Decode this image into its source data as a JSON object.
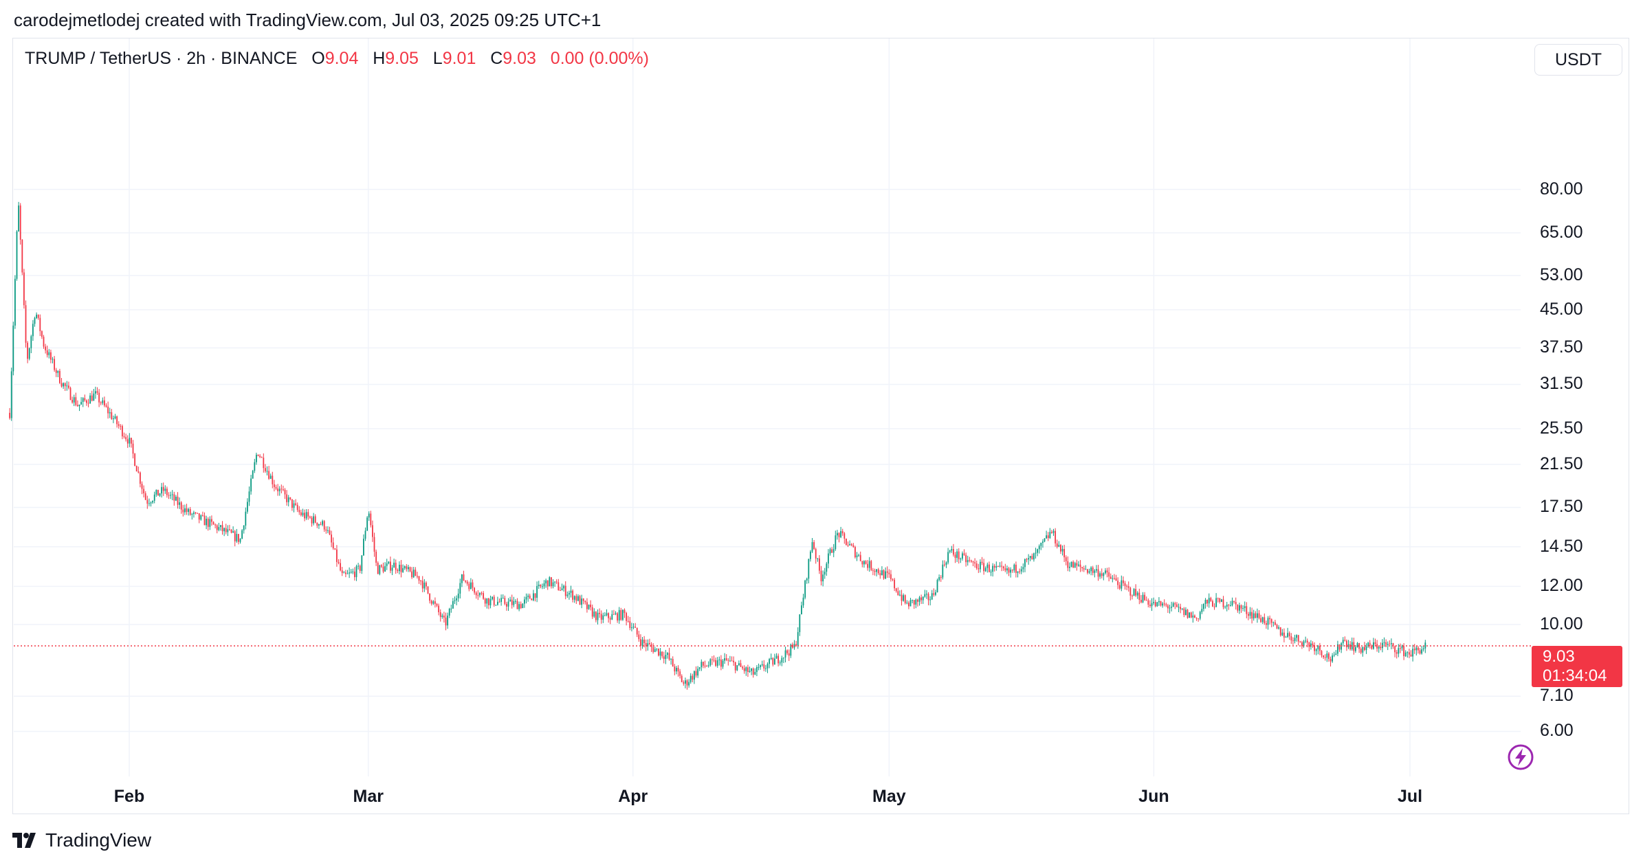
{
  "attribution": "carodejmetlodej created with TradingView.com, Jul 03, 2025 09:25 UTC+1",
  "legend": {
    "symbol": "TRUMP / TetherUS · 2h · BINANCE",
    "o_label": "O",
    "o_value": "9.04",
    "h_label": "H",
    "h_value": "9.05",
    "l_label": "L",
    "l_value": "9.01",
    "c_label": "C",
    "c_value": "9.03",
    "change": "0.00 (0.00%)"
  },
  "currency": "USDT",
  "price_badge": {
    "price": "9.03",
    "countdown": "01:34:04"
  },
  "brand": "TradingView",
  "colors": {
    "up": "#089981",
    "down": "#f23645",
    "grid": "#f0f3fa",
    "text": "#131722"
  },
  "icons": {
    "logo": "tradingview-logo-icon",
    "bolt": "lightning-bolt-icon"
  },
  "chart_data": {
    "type": "candlestick",
    "title": "TRUMP / TetherUS · 2h · BINANCE",
    "y_scale": "log",
    "y_ticks": [
      "80.00",
      "65.00",
      "53.00",
      "45.00",
      "37.50",
      "31.50",
      "25.50",
      "21.50",
      "17.50",
      "14.50",
      "12.00",
      "10.00",
      "7.10",
      "6.00"
    ],
    "x_ticks": [
      "Feb",
      "Mar",
      "Apr",
      "May",
      "Jun",
      "Jul"
    ],
    "ylim": [
      5.6,
      92
    ],
    "last_price": 9.03,
    "grid": true,
    "series": [
      {
        "x": [
          "2025-01-18",
          "2025-01-19",
          "2025-01-20",
          "2025-01-21",
          "2025-01-22",
          "2025-01-24",
          "2025-01-26",
          "2025-01-28",
          "2025-01-30",
          "2025-02-01",
          "2025-02-03",
          "2025-02-05",
          "2025-02-08",
          "2025-02-11",
          "2025-02-14",
          "2025-02-16",
          "2025-02-18",
          "2025-02-21",
          "2025-02-24",
          "2025-02-26",
          "2025-02-28",
          "2025-03-01",
          "2025-03-02",
          "2025-03-04",
          "2025-03-07",
          "2025-03-10",
          "2025-03-12",
          "2025-03-15",
          "2025-03-19",
          "2025-03-22",
          "2025-03-25",
          "2025-03-28",
          "2025-03-31",
          "2025-04-02",
          "2025-04-05",
          "2025-04-07",
          "2025-04-09",
          "2025-04-12",
          "2025-04-15",
          "2025-04-18",
          "2025-04-20",
          "2025-04-22",
          "2025-04-23",
          "2025-04-25",
          "2025-04-28",
          "2025-05-01",
          "2025-05-03",
          "2025-05-06",
          "2025-05-08",
          "2025-05-11",
          "2025-05-15",
          "2025-05-18",
          "2025-05-20",
          "2025-05-22",
          "2025-05-26",
          "2025-05-29",
          "2025-06-01",
          "2025-06-03",
          "2025-06-06",
          "2025-06-07",
          "2025-06-10",
          "2025-06-14",
          "2025-06-16",
          "2025-06-20",
          "2025-06-22",
          "2025-06-23",
          "2025-06-25",
          "2025-06-28",
          "2025-07-01",
          "2025-07-03"
        ],
        "close": [
          27.5,
          76,
          35,
          45,
          38,
          32,
          28.5,
          30,
          27,
          24,
          18,
          19,
          17,
          16,
          15,
          23,
          19.5,
          17,
          16,
          12.5,
          13,
          17.5,
          13,
          13.3,
          12.5,
          10,
          12.5,
          11.2,
          11,
          12.3,
          11.5,
          10.3,
          10.5,
          9.2,
          8.6,
          7.5,
          8.2,
          8.4,
          7.9,
          8.5,
          9,
          15,
          12.5,
          15.5,
          13.5,
          12.5,
          11,
          11.4,
          14.2,
          13.3,
          12.8,
          13.8,
          15.6,
          13.3,
          12.8,
          11.8,
          11,
          10.9,
          10.3,
          11.1,
          11.1,
          10.2,
          9.6,
          9,
          8.4,
          9.3,
          8.9,
          9.1,
          8.7,
          9.03
        ]
      }
    ]
  }
}
